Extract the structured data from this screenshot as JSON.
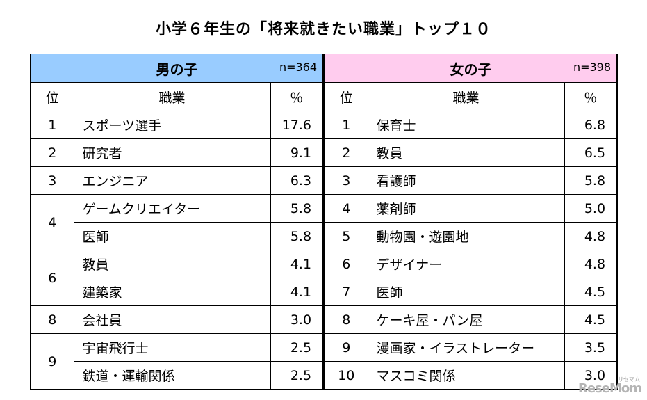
{
  "title": "小学６年生の「将来就きたい職業」トップ１０",
  "header": {
    "rank": "位",
    "job": "職業",
    "pct": "％"
  },
  "boys": {
    "label": "男の子",
    "n": "n=364",
    "rows": [
      {
        "rank": "1",
        "job": "スポーツ選手",
        "pct": "17.6"
      },
      {
        "rank": "2",
        "job": "研究者",
        "pct": "9.1"
      },
      {
        "rank": "3",
        "job": "エンジニア",
        "pct": "6.3"
      },
      {
        "rank": "4",
        "job": "ゲームクリエイター",
        "pct": "5.8"
      },
      {
        "rank": "4",
        "job": "医師",
        "pct": "5.8"
      },
      {
        "rank": "6",
        "job": "教員",
        "pct": "4.1"
      },
      {
        "rank": "6",
        "job": "建築家",
        "pct": "4.1"
      },
      {
        "rank": "8",
        "job": "会社員",
        "pct": "3.0"
      },
      {
        "rank": "9",
        "job": "宇宙飛行士",
        "pct": "2.5"
      },
      {
        "rank": "9",
        "job": "鉄道・運輸関係",
        "pct": "2.5"
      }
    ]
  },
  "girls": {
    "label": "女の子",
    "n": "n=398",
    "rows": [
      {
        "rank": "1",
        "job": "保育士",
        "pct": "6.8"
      },
      {
        "rank": "2",
        "job": "教員",
        "pct": "6.5"
      },
      {
        "rank": "3",
        "job": "看護師",
        "pct": "5.8"
      },
      {
        "rank": "4",
        "job": "薬剤師",
        "pct": "5.0"
      },
      {
        "rank": "5",
        "job": "動物園・遊園地",
        "pct": "4.8"
      },
      {
        "rank": "6",
        "job": "デザイナー",
        "pct": "4.8"
      },
      {
        "rank": "7",
        "job": "医師",
        "pct": "4.5"
      },
      {
        "rank": "8",
        "job": "ケーキ屋・パン屋",
        "pct": "4.5"
      },
      {
        "rank": "9",
        "job": "漫画家・イラストレーター",
        "pct": "3.5"
      },
      {
        "rank": "10",
        "job": "マスコミ関係",
        "pct": "3.0"
      }
    ]
  },
  "watermark": {
    "text": "ReseMom",
    "small": "リセマム"
  }
}
